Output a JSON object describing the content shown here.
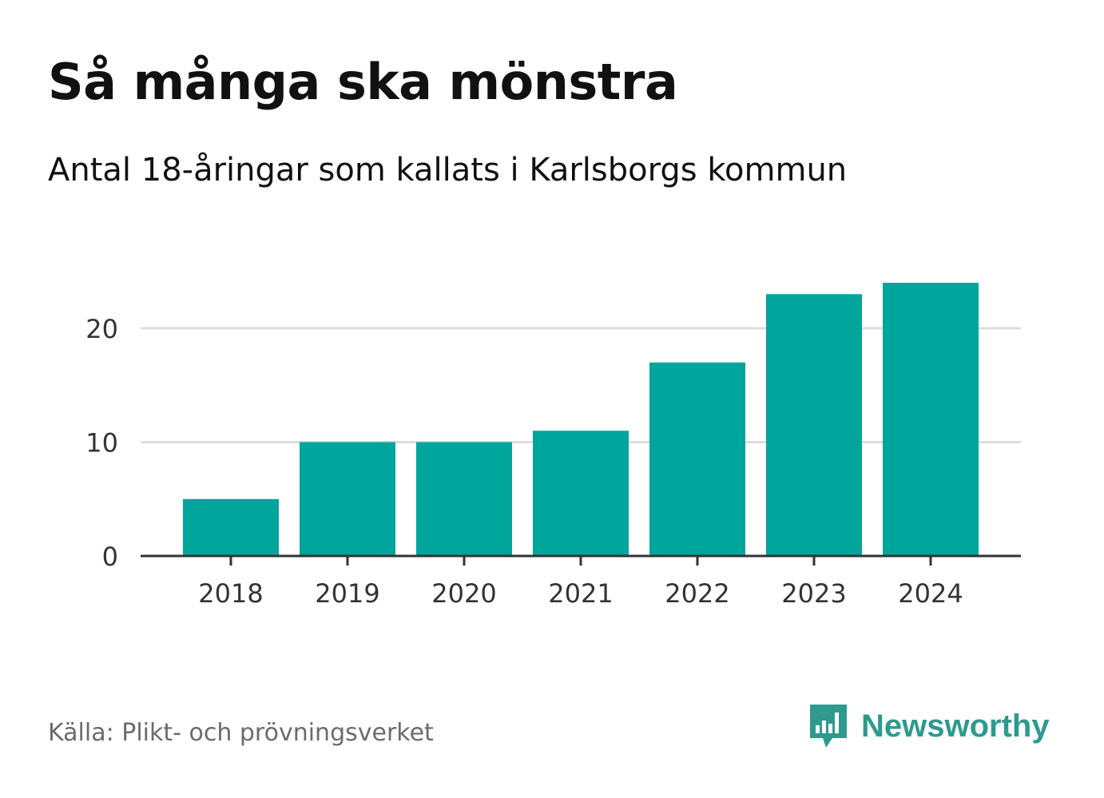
{
  "title": "Så många ska mönstra",
  "subtitle": "Antal 18-åringar som kallats i Karlsborgs kommun",
  "source": "Källa: Plikt- och prövningsverket",
  "brand": {
    "name": "Newsworthy",
    "icon": "newsworthy-logo-icon",
    "color": "#2e9a8e"
  },
  "colors": {
    "bar": "#00a59b",
    "grid": "#dddddd",
    "axis": "#333333"
  },
  "chart_data": {
    "type": "bar",
    "title": "Så många ska mönstra",
    "subtitle": "Antal 18-åringar som kallats i Karlsborgs kommun",
    "xlabel": "",
    "ylabel": "",
    "categories": [
      "2018",
      "2019",
      "2020",
      "2021",
      "2022",
      "2023",
      "2024"
    ],
    "values": [
      5,
      10,
      10,
      11,
      17,
      23,
      24
    ],
    "ylim": [
      0,
      24
    ],
    "yticks": [
      0,
      10,
      20
    ],
    "grid": true
  }
}
